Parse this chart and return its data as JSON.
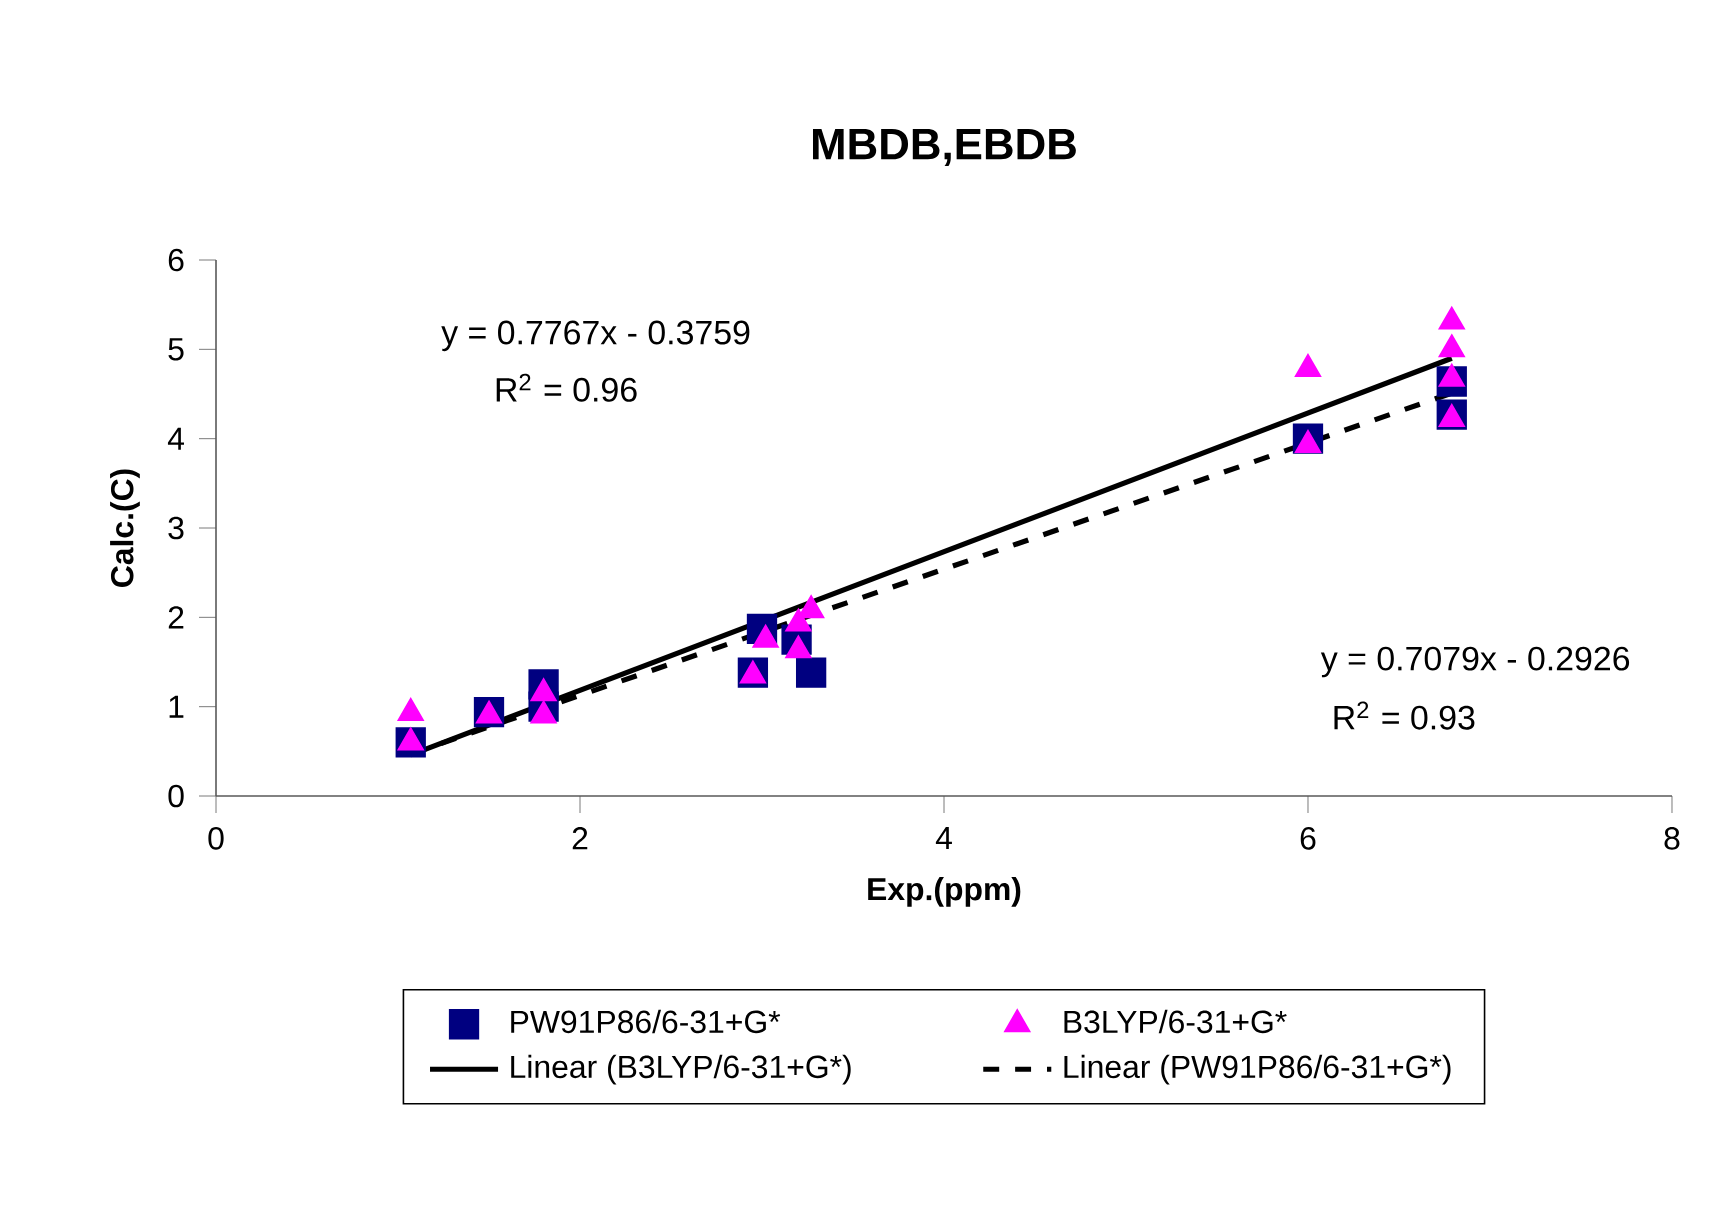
{
  "chart_data": {
    "type": "scatter",
    "title": "MBDB,EBDB",
    "xlabel": "Exp.(ppm)",
    "ylabel": "Calc.(C)",
    "xlim": [
      0,
      8
    ],
    "xticks": [
      0,
      2,
      4,
      6,
      8
    ],
    "ylim": [
      0,
      6
    ],
    "yticks": [
      0,
      1,
      2,
      3,
      4,
      5,
      6
    ],
    "grid": false,
    "legend": "bottom",
    "annotations": [
      "y = 0.7767x - 0.3759",
      "R$^{2}$ = 0.96",
      "y = 0.7079x - 0.2926",
      "R$^{2}$ = 0.93"
    ],
    "series": [
      {
        "name": "PW91P86/6-31+G*",
        "marker": "square",
        "color": "#000080",
        "x": [
          1.07,
          1.5,
          1.8,
          1.8,
          2.95,
          3.0,
          3.19,
          3.27,
          6.0,
          6.79,
          6.79
        ],
        "values": [
          0.6,
          0.94,
          1.25,
          1.0,
          1.38,
          1.87,
          1.75,
          1.38,
          4.0,
          4.64,
          4.27
        ]
      },
      {
        "name": "B3LYP/6-31+G*",
        "marker": "triangle",
        "color": "#ff00ff",
        "x": [
          1.07,
          1.07,
          1.5,
          1.8,
          1.8,
          2.95,
          3.02,
          3.2,
          3.2,
          3.27,
          6.0,
          6.0,
          6.79,
          6.79,
          6.79,
          6.79
        ],
        "values": [
          0.93,
          0.6,
          0.9,
          1.15,
          0.9,
          1.35,
          1.75,
          1.63,
          1.93,
          2.08,
          4.78,
          3.93,
          5.31,
          5.0,
          4.67,
          4.22
        ]
      },
      {
        "name": "Linear (B3LYP/6-31+G*)",
        "type": "line",
        "marker": "none",
        "line_style": "solid",
        "color": "#000000",
        "x": [
          1.07,
          6.79
        ],
        "values": [
          0.46,
          4.9
        ]
      },
      {
        "name": "Linear (PW91P86/6-31+G*)",
        "type": "line",
        "marker": "none",
        "line_style": "dashed",
        "color": "#000000",
        "x": [
          1.07,
          6.79
        ],
        "values": [
          0.47,
          4.51
        ]
      }
    ]
  }
}
